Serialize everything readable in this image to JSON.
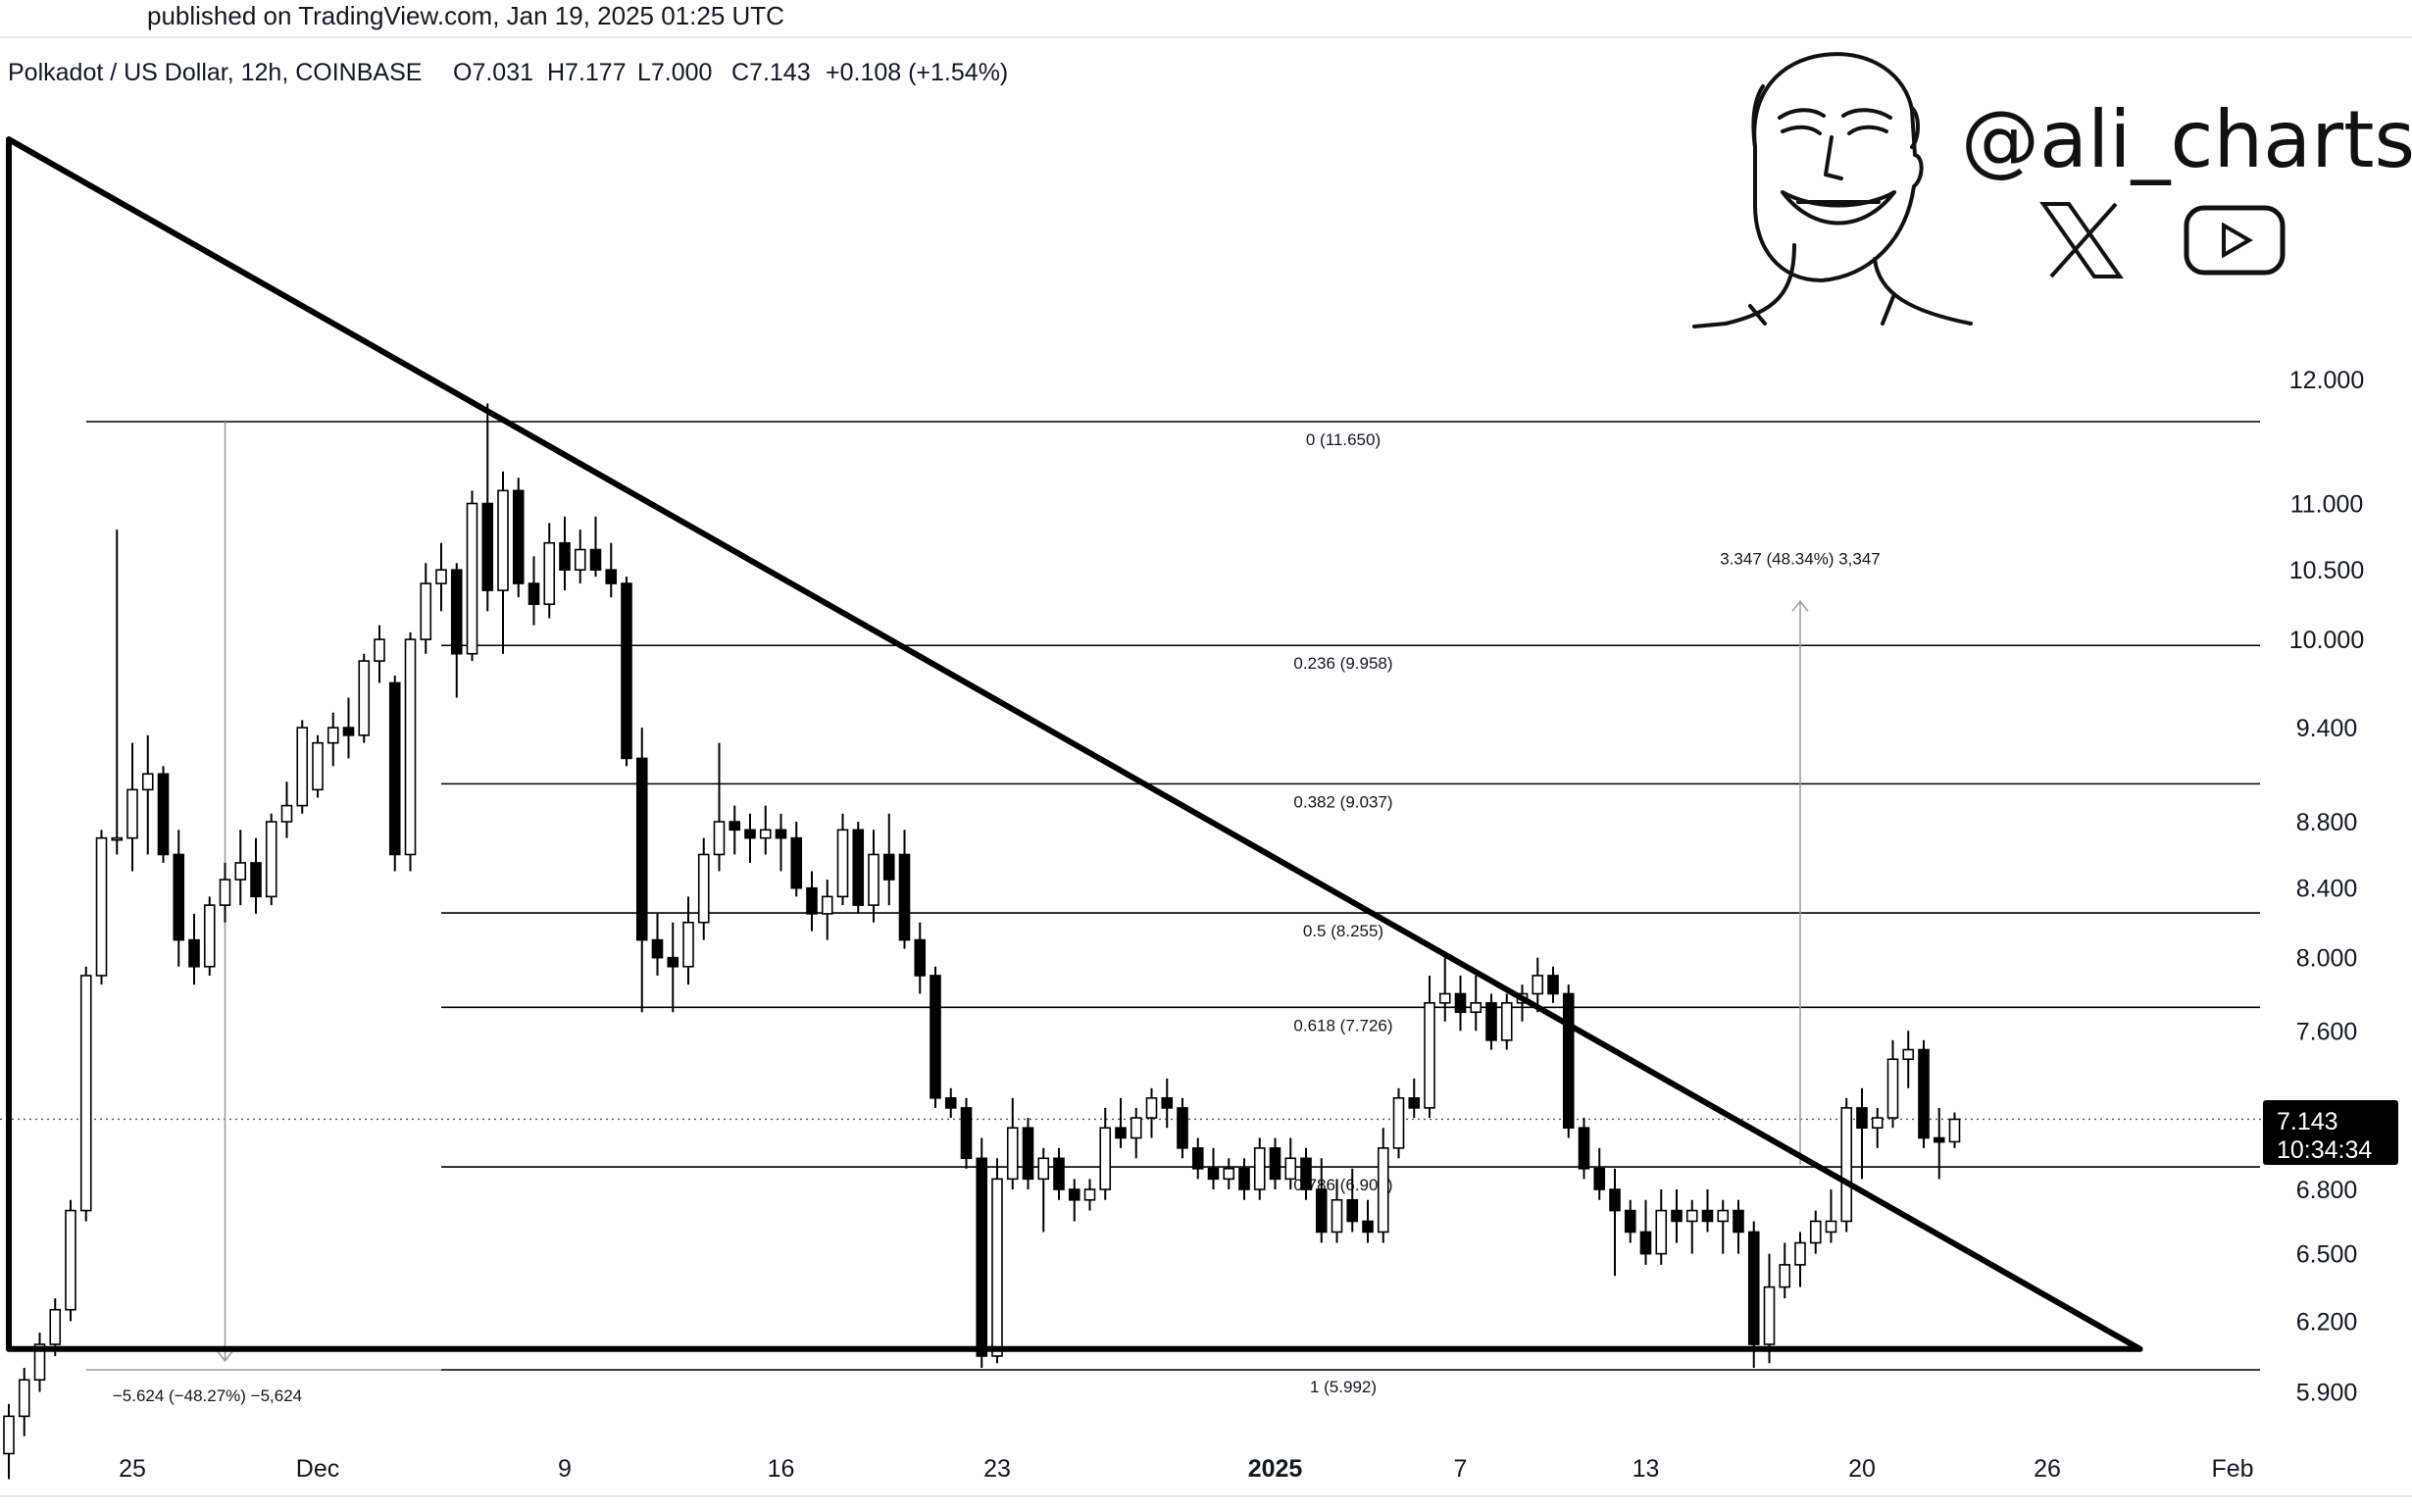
{
  "header": {
    "published": "published on TradingView.com, Jan 19, 2025 01:25 UTC",
    "symbol": "Polkadot / US Dollar, 12h, COINBASE",
    "open": "O7.031",
    "high": "H7.177",
    "low": "L7.000",
    "close": "C7.143",
    "change": "+0.108 (+1.54%)"
  },
  "branding": {
    "handle": "@ali_charts",
    "icons": [
      "avatar-face-icon",
      "x-logo-icon",
      "youtube-play-icon"
    ]
  },
  "last_price": {
    "price": "7.143",
    "countdown": "10:34:34"
  },
  "fib_labels": [
    "0 (11.650)",
    "0.236 (9.958)",
    "0.382 (9.037)",
    "0.5 (8.255)",
    "0.618 (7.726)",
    "0.786 (6.908)",
    "1 (5.992)"
  ],
  "measure_labels": {
    "up": "3.347 (48.34%) 3,347",
    "down": "−5.624 (−48.27%) −5,624"
  },
  "colors": {
    "up_candle": "#ffffff",
    "down_candle": "#000000",
    "line": "#000000",
    "guide": "#9e9e9e"
  },
  "chart_data": {
    "type": "candlestick",
    "title": "Polkadot / US Dollar, 12h, COINBASE",
    "y_scale": "log",
    "yticks": [
      "12.000",
      "11.000",
      "10.500",
      "10.000",
      "9.400",
      "8.800",
      "8.400",
      "8.000",
      "7.600",
      "6.800",
      "6.500",
      "6.200",
      "5.900"
    ],
    "xticks": [
      "25",
      "Dec",
      "9",
      "16",
      "23",
      "2025",
      "7",
      "13",
      "20",
      "26",
      "Feb"
    ],
    "fib_levels": [
      {
        "ratio": 0,
        "price": 11.65
      },
      {
        "ratio": 0.236,
        "price": 9.958
      },
      {
        "ratio": 0.382,
        "price": 9.037
      },
      {
        "ratio": 0.5,
        "price": 8.255
      },
      {
        "ratio": 0.618,
        "price": 7.726
      },
      {
        "ratio": 0.786,
        "price": 6.908
      },
      {
        "ratio": 1,
        "price": 5.992
      }
    ],
    "descending_triangle": {
      "upper": [
        {
          "date": "2024-11-21",
          "price": 14.2
        },
        {
          "date": "2025-01-29",
          "price": 6.08
        }
      ],
      "support": 6.08,
      "support_range": [
        "2024-11-21",
        "2025-01-29"
      ]
    },
    "measurements": [
      {
        "label": "3.347 (48.34%) 3,347",
        "date": "2025-01-18",
        "from": 6.92,
        "to": 10.27
      },
      {
        "label": "−5.624 (−48.27%) −5,624",
        "date": "2024-11-28",
        "from": 11.65,
        "to": 6.03
      }
    ],
    "last_price": 7.143,
    "candles": [
      {
        "t": "2024-11-21 00:00",
        "o": 5.65,
        "h": 5.85,
        "l": 5.55,
        "c": 5.8
      },
      {
        "t": "2024-11-21 12:00",
        "o": 5.8,
        "h": 6.0,
        "l": 5.72,
        "c": 5.95
      },
      {
        "t": "2024-11-22 00:00",
        "o": 5.95,
        "h": 6.15,
        "l": 5.9,
        "c": 6.1
      },
      {
        "t": "2024-11-22 12:00",
        "o": 6.1,
        "h": 6.3,
        "l": 6.05,
        "c": 6.25
      },
      {
        "t": "2024-11-23 00:00",
        "o": 6.25,
        "h": 6.75,
        "l": 6.2,
        "c": 6.7
      },
      {
        "t": "2024-11-23 12:00",
        "o": 6.7,
        "h": 7.95,
        "l": 6.65,
        "c": 7.9
      },
      {
        "t": "2024-11-24 00:00",
        "o": 7.9,
        "h": 8.75,
        "l": 7.85,
        "c": 8.7
      },
      {
        "t": "2024-11-24 12:00",
        "o": 8.7,
        "h": 10.8,
        "l": 8.6,
        "c": 8.7
      },
      {
        "t": "2024-11-25 00:00",
        "o": 8.7,
        "h": 9.3,
        "l": 8.5,
        "c": 9.0
      },
      {
        "t": "2024-11-25 12:00",
        "o": 9.0,
        "h": 9.35,
        "l": 8.6,
        "c": 9.1
      },
      {
        "t": "2024-11-26 00:00",
        "o": 9.1,
        "h": 9.15,
        "l": 8.55,
        "c": 8.6
      },
      {
        "t": "2024-11-26 12:00",
        "o": 8.6,
        "h": 8.75,
        "l": 7.95,
        "c": 8.1
      },
      {
        "t": "2024-11-27 00:00",
        "o": 8.1,
        "h": 8.25,
        "l": 7.85,
        "c": 7.95
      },
      {
        "t": "2024-11-27 12:00",
        "o": 7.95,
        "h": 8.35,
        "l": 7.9,
        "c": 8.3
      },
      {
        "t": "2024-11-28 00:00",
        "o": 8.3,
        "h": 8.55,
        "l": 8.2,
        "c": 8.45
      },
      {
        "t": "2024-11-28 12:00",
        "o": 8.45,
        "h": 8.75,
        "l": 8.3,
        "c": 8.55
      },
      {
        "t": "2024-11-29 00:00",
        "o": 8.55,
        "h": 8.7,
        "l": 8.25,
        "c": 8.35
      },
      {
        "t": "2024-11-29 12:00",
        "o": 8.35,
        "h": 8.85,
        "l": 8.3,
        "c": 8.8
      },
      {
        "t": "2024-11-30 00:00",
        "o": 8.8,
        "h": 9.05,
        "l": 8.7,
        "c": 8.9
      },
      {
        "t": "2024-11-30 12:00",
        "o": 8.9,
        "h": 9.45,
        "l": 8.85,
        "c": 9.4
      },
      {
        "t": "2024-12-01 00:00",
        "o": 9.0,
        "h": 9.35,
        "l": 8.95,
        "c": 9.3
      },
      {
        "t": "2024-12-01 12:00",
        "o": 9.3,
        "h": 9.5,
        "l": 9.15,
        "c": 9.4
      },
      {
        "t": "2024-12-02 00:00",
        "o": 9.4,
        "h": 9.6,
        "l": 9.2,
        "c": 9.35
      },
      {
        "t": "2024-12-02 12:00",
        "o": 9.35,
        "h": 9.9,
        "l": 9.3,
        "c": 9.85
      },
      {
        "t": "2024-12-03 00:00",
        "o": 9.85,
        "h": 10.1,
        "l": 9.7,
        "c": 10.0
      },
      {
        "t": "2024-12-03 12:00",
        "o": 9.7,
        "h": 9.75,
        "l": 8.5,
        "c": 8.6
      },
      {
        "t": "2024-12-04 00:00",
        "o": 8.6,
        "h": 10.05,
        "l": 8.5,
        "c": 10.0
      },
      {
        "t": "2024-12-04 12:00",
        "o": 10.0,
        "h": 10.55,
        "l": 9.9,
        "c": 10.4
      },
      {
        "t": "2024-12-05 00:00",
        "o": 10.4,
        "h": 10.7,
        "l": 10.2,
        "c": 10.5
      },
      {
        "t": "2024-12-05 12:00",
        "o": 10.5,
        "h": 10.55,
        "l": 9.6,
        "c": 9.9
      },
      {
        "t": "2024-12-06 00:00",
        "o": 9.9,
        "h": 11.1,
        "l": 9.85,
        "c": 11.0
      },
      {
        "t": "2024-12-06 12:00",
        "o": 11.0,
        "h": 11.8,
        "l": 10.2,
        "c": 10.35
      },
      {
        "t": "2024-12-07 00:00",
        "o": 10.35,
        "h": 11.25,
        "l": 9.9,
        "c": 11.1
      },
      {
        "t": "2024-12-07 12:00",
        "o": 11.1,
        "h": 11.2,
        "l": 10.3,
        "c": 10.4
      },
      {
        "t": "2024-12-08 00:00",
        "o": 10.4,
        "h": 10.6,
        "l": 10.1,
        "c": 10.25
      },
      {
        "t": "2024-12-08 12:00",
        "o": 10.25,
        "h": 10.85,
        "l": 10.15,
        "c": 10.7
      },
      {
        "t": "2024-12-09 00:00",
        "o": 10.7,
        "h": 10.9,
        "l": 10.35,
        "c": 10.5
      },
      {
        "t": "2024-12-09 12:00",
        "o": 10.5,
        "h": 10.8,
        "l": 10.4,
        "c": 10.65
      },
      {
        "t": "2024-12-10 00:00",
        "o": 10.65,
        "h": 10.9,
        "l": 10.45,
        "c": 10.5
      },
      {
        "t": "2024-12-10 12:00",
        "o": 10.5,
        "h": 10.7,
        "l": 10.3,
        "c": 10.4
      },
      {
        "t": "2024-12-11 00:00",
        "o": 10.4,
        "h": 10.45,
        "l": 9.15,
        "c": 9.2
      },
      {
        "t": "2024-12-11 12:00",
        "o": 9.2,
        "h": 9.4,
        "l": 7.7,
        "c": 8.1
      },
      {
        "t": "2024-12-12 00:00",
        "o": 8.1,
        "h": 8.25,
        "l": 7.9,
        "c": 8.0
      },
      {
        "t": "2024-12-12 12:00",
        "o": 8.0,
        "h": 8.2,
        "l": 7.7,
        "c": 7.95
      },
      {
        "t": "2024-12-13 00:00",
        "o": 7.95,
        "h": 8.35,
        "l": 7.85,
        "c": 8.2
      },
      {
        "t": "2024-12-13 12:00",
        "o": 8.2,
        "h": 8.7,
        "l": 8.1,
        "c": 8.6
      },
      {
        "t": "2024-12-14 00:00",
        "o": 8.6,
        "h": 9.3,
        "l": 8.5,
        "c": 8.8
      },
      {
        "t": "2024-12-14 12:00",
        "o": 8.8,
        "h": 8.9,
        "l": 8.6,
        "c": 8.75
      },
      {
        "t": "2024-12-15 00:00",
        "o": 8.75,
        "h": 8.85,
        "l": 8.55,
        "c": 8.7
      },
      {
        "t": "2024-12-15 12:00",
        "o": 8.7,
        "h": 8.9,
        "l": 8.6,
        "c": 8.75
      },
      {
        "t": "2024-12-16 00:00",
        "o": 8.75,
        "h": 8.85,
        "l": 8.5,
        "c": 8.7
      },
      {
        "t": "2024-12-16 12:00",
        "o": 8.7,
        "h": 8.8,
        "l": 8.35,
        "c": 8.4
      },
      {
        "t": "2024-12-17 00:00",
        "o": 8.4,
        "h": 8.5,
        "l": 8.15,
        "c": 8.25
      },
      {
        "t": "2024-12-17 12:00",
        "o": 8.25,
        "h": 8.45,
        "l": 8.1,
        "c": 8.35
      },
      {
        "t": "2024-12-18 00:00",
        "o": 8.35,
        "h": 8.85,
        "l": 8.3,
        "c": 8.75
      },
      {
        "t": "2024-12-18 12:00",
        "o": 8.75,
        "h": 8.8,
        "l": 8.25,
        "c": 8.3
      },
      {
        "t": "2024-12-19 00:00",
        "o": 8.3,
        "h": 8.75,
        "l": 8.2,
        "c": 8.6
      },
      {
        "t": "2024-12-19 12:00",
        "o": 8.6,
        "h": 8.85,
        "l": 8.3,
        "c": 8.45
      },
      {
        "t": "2024-12-20 00:00",
        "o": 8.6,
        "h": 8.75,
        "l": 8.05,
        "c": 8.1
      },
      {
        "t": "2024-12-20 12:00",
        "o": 8.1,
        "h": 8.2,
        "l": 7.8,
        "c": 7.9
      },
      {
        "t": "2024-12-21 00:00",
        "o": 7.9,
        "h": 7.95,
        "l": 7.2,
        "c": 7.25
      },
      {
        "t": "2024-12-21 12:00",
        "o": 7.25,
        "h": 7.3,
        "l": 7.15,
        "c": 7.2
      },
      {
        "t": "2024-12-22 00:00",
        "o": 7.2,
        "h": 7.25,
        "l": 6.9,
        "c": 6.95
      },
      {
        "t": "2024-12-22 12:00",
        "o": 6.95,
        "h": 7.05,
        "l": 6.0,
        "c": 6.05
      },
      {
        "t": "2024-12-23 00:00",
        "o": 6.05,
        "h": 6.95,
        "l": 6.02,
        "c": 6.85
      },
      {
        "t": "2024-12-23 12:00",
        "o": 6.85,
        "h": 7.25,
        "l": 6.8,
        "c": 7.1
      },
      {
        "t": "2024-12-24 00:00",
        "o": 7.1,
        "h": 7.15,
        "l": 6.8,
        "c": 6.85
      },
      {
        "t": "2024-12-24 12:00",
        "o": 6.85,
        "h": 7.0,
        "l": 6.6,
        "c": 6.95
      },
      {
        "t": "2024-12-25 00:00",
        "o": 6.95,
        "h": 7.0,
        "l": 6.75,
        "c": 6.8
      },
      {
        "t": "2024-12-25 12:00",
        "o": 6.8,
        "h": 6.85,
        "l": 6.65,
        "c": 6.75
      },
      {
        "t": "2024-12-26 00:00",
        "o": 6.75,
        "h": 6.85,
        "l": 6.7,
        "c": 6.8
      },
      {
        "t": "2024-12-26 12:00",
        "o": 6.8,
        "h": 7.2,
        "l": 6.75,
        "c": 7.1
      },
      {
        "t": "2024-12-27 00:00",
        "o": 7.1,
        "h": 7.25,
        "l": 7.0,
        "c": 7.05
      },
      {
        "t": "2024-12-27 12:00",
        "o": 7.05,
        "h": 7.2,
        "l": 6.95,
        "c": 7.15
      },
      {
        "t": "2024-12-28 00:00",
        "o": 7.15,
        "h": 7.3,
        "l": 7.05,
        "c": 7.25
      },
      {
        "t": "2024-12-28 12:00",
        "o": 7.25,
        "h": 7.35,
        "l": 7.1,
        "c": 7.2
      },
      {
        "t": "2024-12-29 00:00",
        "o": 7.2,
        "h": 7.25,
        "l": 6.95,
        "c": 7.0
      },
      {
        "t": "2024-12-29 12:00",
        "o": 7.0,
        "h": 7.05,
        "l": 6.85,
        "c": 6.9
      },
      {
        "t": "2024-12-30 00:00",
        "o": 6.9,
        "h": 7.0,
        "l": 6.8,
        "c": 6.85
      },
      {
        "t": "2024-12-30 12:00",
        "o": 6.85,
        "h": 6.95,
        "l": 6.8,
        "c": 6.9
      },
      {
        "t": "2024-12-31 00:00",
        "o": 6.9,
        "h": 6.95,
        "l": 6.75,
        "c": 6.8
      },
      {
        "t": "2024-12-31 12:00",
        "o": 6.8,
        "h": 7.05,
        "l": 6.75,
        "c": 7.0
      },
      {
        "t": "2025-01-01 00:00",
        "o": 7.0,
        "h": 7.05,
        "l": 6.8,
        "c": 6.85
      },
      {
        "t": "2025-01-01 12:00",
        "o": 6.85,
        "h": 7.05,
        "l": 6.8,
        "c": 6.95
      },
      {
        "t": "2025-01-02 00:00",
        "o": 6.95,
        "h": 7.0,
        "l": 6.75,
        "c": 6.8
      },
      {
        "t": "2025-01-02 12:00",
        "o": 6.8,
        "h": 6.95,
        "l": 6.55,
        "c": 6.6
      },
      {
        "t": "2025-01-03 00:00",
        "o": 6.6,
        "h": 6.85,
        "l": 6.55,
        "c": 6.75
      },
      {
        "t": "2025-01-03 12:00",
        "o": 6.75,
        "h": 6.9,
        "l": 6.6,
        "c": 6.65
      },
      {
        "t": "2025-01-04 00:00",
        "o": 6.65,
        "h": 6.75,
        "l": 6.55,
        "c": 6.6
      },
      {
        "t": "2025-01-04 12:00",
        "o": 6.6,
        "h": 7.1,
        "l": 6.55,
        "c": 7.0
      },
      {
        "t": "2025-01-05 00:00",
        "o": 7.0,
        "h": 7.3,
        "l": 6.95,
        "c": 7.25
      },
      {
        "t": "2025-01-05 12:00",
        "o": 7.25,
        "h": 7.35,
        "l": 7.15,
        "c": 7.2
      },
      {
        "t": "2025-01-06 00:00",
        "o": 7.2,
        "h": 7.9,
        "l": 7.15,
        "c": 7.75
      },
      {
        "t": "2025-01-06 12:00",
        "o": 7.75,
        "h": 8.0,
        "l": 7.65,
        "c": 7.8
      },
      {
        "t": "2025-01-07 00:00",
        "o": 7.8,
        "h": 7.9,
        "l": 7.6,
        "c": 7.7
      },
      {
        "t": "2025-01-07 12:00",
        "o": 7.7,
        "h": 7.9,
        "l": 7.6,
        "c": 7.75
      },
      {
        "t": "2025-01-08 00:00",
        "o": 7.75,
        "h": 7.8,
        "l": 7.5,
        "c": 7.55
      },
      {
        "t": "2025-01-08 12:00",
        "o": 7.55,
        "h": 7.8,
        "l": 7.5,
        "c": 7.75
      },
      {
        "t": "2025-01-09 00:00",
        "o": 7.75,
        "h": 7.85,
        "l": 7.65,
        "c": 7.8
      },
      {
        "t": "2025-01-09 12:00",
        "o": 7.8,
        "h": 8.0,
        "l": 7.7,
        "c": 7.9
      },
      {
        "t": "2025-01-10 00:00",
        "o": 7.9,
        "h": 7.95,
        "l": 7.75,
        "c": 7.8
      },
      {
        "t": "2025-01-10 12:00",
        "o": 7.8,
        "h": 7.85,
        "l": 7.05,
        "c": 7.1
      },
      {
        "t": "2025-01-11 00:00",
        "o": 7.1,
        "h": 7.15,
        "l": 6.85,
        "c": 6.9
      },
      {
        "t": "2025-01-11 12:00",
        "o": 6.9,
        "h": 7.0,
        "l": 6.75,
        "c": 6.8
      },
      {
        "t": "2025-01-12 00:00",
        "o": 6.8,
        "h": 6.9,
        "l": 6.4,
        "c": 6.7
      },
      {
        "t": "2025-01-12 12:00",
        "o": 6.7,
        "h": 6.75,
        "l": 6.55,
        "c": 6.6
      },
      {
        "t": "2025-01-13 00:00",
        "o": 6.6,
        "h": 6.75,
        "l": 6.45,
        "c": 6.5
      },
      {
        "t": "2025-01-13 12:00",
        "o": 6.5,
        "h": 6.8,
        "l": 6.45,
        "c": 6.7
      },
      {
        "t": "2025-01-14 00:00",
        "o": 6.7,
        "h": 6.8,
        "l": 6.55,
        "c": 6.65
      },
      {
        "t": "2025-01-14 12:00",
        "o": 6.65,
        "h": 6.75,
        "l": 6.5,
        "c": 6.7
      },
      {
        "t": "2025-01-15 00:00",
        "o": 6.7,
        "h": 6.8,
        "l": 6.6,
        "c": 6.65
      },
      {
        "t": "2025-01-15 12:00",
        "o": 6.65,
        "h": 6.75,
        "l": 6.5,
        "c": 6.7
      },
      {
        "t": "2025-01-16 00:00",
        "o": 6.7,
        "h": 6.75,
        "l": 6.5,
        "c": 6.6
      },
      {
        "t": "2025-01-16 12:00",
        "o": 6.6,
        "h": 6.65,
        "l": 6.0,
        "c": 6.1
      },
      {
        "t": "2025-01-17 00:00",
        "o": 6.1,
        "h": 6.5,
        "l": 6.02,
        "c": 6.35
      },
      {
        "t": "2025-01-17 12:00",
        "o": 6.35,
        "h": 6.55,
        "l": 6.3,
        "c": 6.45
      },
      {
        "t": "2025-01-18 00:00",
        "o": 6.45,
        "h": 6.6,
        "l": 6.35,
        "c": 6.55
      },
      {
        "t": "2025-01-18 12:00",
        "o": 6.55,
        "h": 6.7,
        "l": 6.5,
        "c": 6.65
      },
      {
        "t": "2025-01-19 00:00",
        "o": 6.6,
        "h": 6.8,
        "l": 6.55,
        "c": 6.65
      },
      {
        "t": "2025-01-19 12:00",
        "o": 6.65,
        "h": 7.25,
        "l": 6.6,
        "c": 7.2
      },
      {
        "t": "2025-01-20 00:00",
        "o": 7.2,
        "h": 7.3,
        "l": 6.85,
        "c": 7.1
      },
      {
        "t": "2025-01-20 12:00",
        "o": 7.1,
        "h": 7.2,
        "l": 7.0,
        "c": 7.15
      },
      {
        "t": "2025-01-21 00:00",
        "o": 7.15,
        "h": 7.55,
        "l": 7.1,
        "c": 7.45
      },
      {
        "t": "2025-01-21 12:00",
        "o": 7.45,
        "h": 7.6,
        "l": 7.3,
        "c": 7.5
      },
      {
        "t": "2025-01-22 00:00",
        "o": 7.5,
        "h": 7.55,
        "l": 7.0,
        "c": 7.05
      },
      {
        "t": "2025-01-22 12:00",
        "o": 7.05,
        "h": 7.2,
        "l": 6.85,
        "c": 7.03
      },
      {
        "t": "2025-01-23 00:00",
        "o": 7.031,
        "h": 7.177,
        "l": 7.0,
        "c": 7.143
      }
    ]
  }
}
